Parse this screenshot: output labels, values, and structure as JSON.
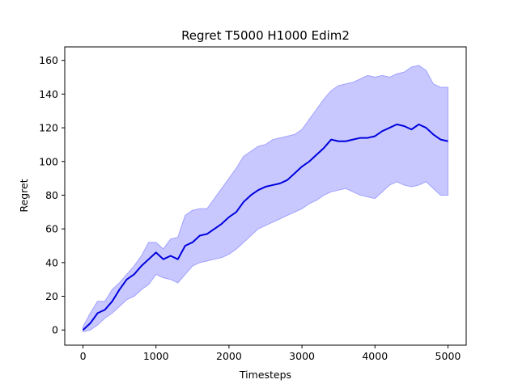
{
  "chart_data": {
    "type": "line",
    "title": "Regret T5000 H1000 Edim2",
    "xlabel": "Timesteps",
    "ylabel": "Regret",
    "xlim": [
      -250,
      5250
    ],
    "ylim": [
      -9,
      168
    ],
    "xticks": [
      0,
      1000,
      2000,
      3000,
      4000,
      5000
    ],
    "yticks": [
      0,
      20,
      40,
      60,
      80,
      100,
      120,
      140,
      160
    ],
    "grid": false,
    "legend": "none",
    "colors": {
      "mean_line": "#0000dd",
      "band_fill": "#c8c8ff",
      "band_edge": "#a0a0ff"
    },
    "series": [
      {
        "x": [
          0,
          100,
          200,
          300,
          400,
          500,
          600,
          700,
          800,
          900,
          1000,
          1100,
          1200,
          1300,
          1400,
          1500,
          1600,
          1700,
          1800,
          1900,
          2000,
          2100,
          2200,
          2300,
          2400,
          2500,
          2600,
          2700,
          2800,
          2900,
          3000,
          3100,
          3200,
          3300,
          3400,
          3500,
          3600,
          3700,
          3800,
          3900,
          4000,
          4100,
          4200,
          4300,
          4400,
          4500,
          4600,
          4700,
          4800,
          4900,
          5000
        ],
        "y": [
          0,
          4,
          10,
          12,
          17,
          24,
          30,
          33,
          38,
          42,
          46,
          42,
          44,
          42,
          50,
          52,
          56,
          57,
          60,
          63,
          67,
          70,
          76,
          80,
          83,
          85,
          86,
          87,
          89,
          93,
          97,
          100,
          104,
          108,
          113,
          112,
          112,
          113,
          114,
          114,
          115,
          118,
          120,
          122,
          121,
          119,
          122,
          120,
          116,
          113,
          112
        ],
        "lower": [
          -1,
          0,
          3,
          7,
          10,
          14,
          18,
          20,
          24,
          27,
          33,
          31,
          30,
          28,
          33,
          38,
          40,
          41,
          42,
          43,
          45,
          48,
          52,
          56,
          60,
          62,
          64,
          66,
          68,
          70,
          72,
          75,
          77,
          80,
          82,
          83,
          84,
          82,
          80,
          79,
          78,
          82,
          86,
          88,
          86,
          85,
          86,
          88,
          84,
          80,
          80
        ],
        "upper": [
          2,
          10,
          17,
          17,
          24,
          28,
          33,
          38,
          44,
          52,
          52,
          48,
          54,
          55,
          68,
          71,
          72,
          72,
          78,
          84,
          90,
          96,
          103,
          106,
          109,
          110,
          113,
          114,
          115,
          116,
          119,
          125,
          131,
          137,
          142,
          145,
          146,
          147,
          149,
          151,
          150,
          151,
          150,
          152,
          153,
          156,
          157,
          154,
          146,
          144,
          144
        ]
      }
    ]
  }
}
